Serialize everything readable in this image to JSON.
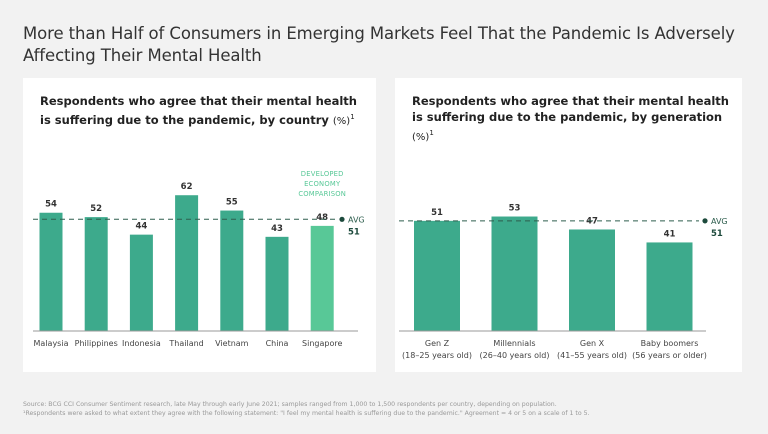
{
  "title": "More than Half of Consumers in Emerging Markets Feel That the Pandemic Is Adversely Affecting Their Mental Health",
  "colors": {
    "bar": "#3daa8c",
    "bar_highlight": "#58c897",
    "avg_line": "#2e5e4e",
    "avg_dot": "#1d4a3c",
    "annotation": "#58c897"
  },
  "left_panel": {
    "title_main": "Respondents who agree that their mental health is suffering due to the pandemic, by country ",
    "title_unit": "(%)",
    "title_sup": "1"
  },
  "right_panel": {
    "title_main": "Respondents who agree that their mental health is suffering due to the pandemic, by generation ",
    "title_unit": "(%)",
    "title_sup": "1"
  },
  "chart_data": [
    {
      "type": "bar",
      "title": "Respondents who agree that their mental health is suffering due to the pandemic, by country (%)",
      "categories": [
        "Malaysia",
        "Philippines",
        "Indonesia",
        "Thailand",
        "Vietnam",
        "China",
        "Singapore"
      ],
      "values": [
        54,
        52,
        44,
        62,
        55,
        43,
        48
      ],
      "highlight": [
        "Singapore"
      ],
      "annotation": [
        "DEVELOPED",
        "ECONOMY",
        "COMPARISON"
      ],
      "average": {
        "label": "AVG",
        "value": 51
      },
      "xlabel": "",
      "ylabel": "",
      "ylim": [
        0,
        70
      ],
      "grid": false
    },
    {
      "type": "bar",
      "title": "Respondents who agree that their mental health is suffering due to the pandemic, by generation (%)",
      "categories": [
        "Gen Z",
        "Millennials",
        "Gen X",
        "Baby boomers"
      ],
      "sublabels": [
        "(18–25 years old)",
        "(26–40 years old)",
        "(41–55 years old)",
        "(56 years or older)"
      ],
      "values": [
        51,
        53,
        47,
        41
      ],
      "average": {
        "label": "AVG",
        "value": 51
      },
      "xlabel": "",
      "ylabel": "",
      "ylim": [
        0,
        70
      ],
      "grid": false
    }
  ],
  "footnotes": [
    "Source: BCG CCI Consumer Sentiment research, late May through early June 2021; samples ranged from 1,000 to 1,500 respondents per country, depending on population.",
    "¹Respondents were asked to what extent they agree with the following statement: \"I feel my mental health is suffering due to the pandemic.\" Agreement = 4 or 5 on a scale of 1 to 5."
  ]
}
